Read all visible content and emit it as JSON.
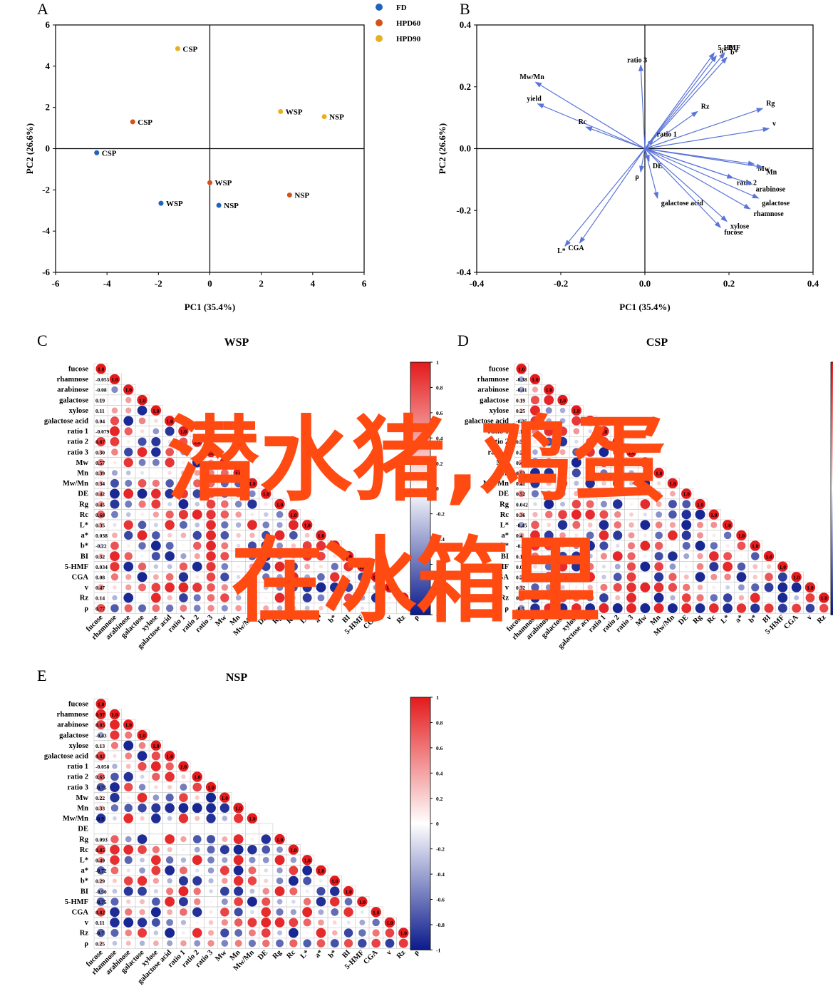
{
  "colors": {
    "FD": "#1f64b8",
    "HPD60": "#d4521a",
    "HPD90": "#e8b020",
    "vector": "#5a74d8",
    "pos": "#e41a1c",
    "neg": "#0a1a8c",
    "watermark": "#ff4a12"
  },
  "watermark": {
    "line1": "潜水猪,鸡蛋",
    "line2": "在冰箱里"
  },
  "panels": {
    "A": "A",
    "B": "B",
    "C": "C",
    "D": "D",
    "E": "E"
  },
  "chart_data": [
    {
      "type": "scatter",
      "panel": "A",
      "xlabel": "PC1 (35.4%)",
      "ylabel": "PC2 (26.6%)",
      "xlim": [
        -6,
        6
      ],
      "ylim": [
        -6,
        6
      ],
      "xticks": [
        -6,
        -4,
        -2,
        0,
        2,
        4,
        6
      ],
      "yticks": [
        -6,
        -4,
        -2,
        0,
        2,
        4,
        6
      ],
      "legend_position": "top-right outside",
      "series": [
        {
          "name": "FD",
          "color_key": "FD",
          "points": [
            {
              "x": -4.4,
              "y": -0.2,
              "label": "CSP"
            },
            {
              "x": -1.9,
              "y": -2.65,
              "label": "WSP"
            },
            {
              "x": 0.35,
              "y": -2.75,
              "label": "NSP"
            }
          ]
        },
        {
          "name": "HPD60",
          "color_key": "HPD60",
          "points": [
            {
              "x": -3.0,
              "y": 1.3,
              "label": "CSP"
            },
            {
              "x": 0.0,
              "y": -1.65,
              "label": "WSP"
            },
            {
              "x": 3.1,
              "y": -2.25,
              "label": "NSP"
            }
          ]
        },
        {
          "name": "HPD90",
          "color_key": "HPD90",
          "points": [
            {
              "x": -1.25,
              "y": 4.85,
              "label": "CSP"
            },
            {
              "x": 2.75,
              "y": 1.8,
              "label": "WSP"
            },
            {
              "x": 4.45,
              "y": 1.55,
              "label": "NSP"
            }
          ]
        }
      ]
    },
    {
      "type": "loading_plot",
      "panel": "B",
      "xlabel": "PC1 (35.4%)",
      "ylabel": "PC2 (26.6%)",
      "xlim": [
        -0.4,
        0.4
      ],
      "ylim": [
        -0.4,
        0.4
      ],
      "xticks": [
        "-0.4",
        "-0.2",
        "0.0",
        "0.2",
        "0.4"
      ],
      "yticks": [
        "-0.4",
        "-0.2",
        "0.0",
        "0.2",
        "0.4"
      ],
      "vectors": [
        {
          "label": "5-HMF",
          "x": 0.165,
          "y": 0.31
        },
        {
          "label": "BI",
          "x": 0.19,
          "y": 0.31
        },
        {
          "label": "a*",
          "x": 0.17,
          "y": 0.3
        },
        {
          "label": "b*",
          "x": 0.195,
          "y": 0.295
        },
        {
          "label": "ratio 3",
          "x": -0.01,
          "y": 0.27
        },
        {
          "label": "Mw/Mn",
          "x": -0.26,
          "y": 0.215
        },
        {
          "label": "yield",
          "x": -0.255,
          "y": 0.145
        },
        {
          "label": "Rc",
          "x": -0.14,
          "y": 0.07
        },
        {
          "label": "Rz",
          "x": 0.125,
          "y": 0.12
        },
        {
          "label": "Rg",
          "x": 0.28,
          "y": 0.13
        },
        {
          "label": "v",
          "x": 0.295,
          "y": 0.065
        },
        {
          "label": "ratio 1",
          "x": 0.02,
          "y": 0.03
        },
        {
          "label": "DE",
          "x": 0.01,
          "y": -0.04
        },
        {
          "label": "ρ",
          "x": -0.01,
          "y": -0.075
        },
        {
          "label": "galactose acid",
          "x": 0.03,
          "y": -0.16
        },
        {
          "label": "Mw",
          "x": 0.26,
          "y": -0.05
        },
        {
          "label": "Mn",
          "x": 0.28,
          "y": -0.06
        },
        {
          "label": "ratio 2",
          "x": 0.21,
          "y": -0.095
        },
        {
          "label": "arabinose",
          "x": 0.255,
          "y": -0.115
        },
        {
          "label": "galactose",
          "x": 0.27,
          "y": -0.16
        },
        {
          "label": "rhamnose",
          "x": 0.25,
          "y": -0.195
        },
        {
          "label": "xylose",
          "x": 0.195,
          "y": -0.235
        },
        {
          "label": "fucose",
          "x": 0.18,
          "y": -0.255
        },
        {
          "label": "L*",
          "x": -0.19,
          "y": -0.315
        },
        {
          "label": "CGA",
          "x": -0.155,
          "y": -0.305
        }
      ]
    },
    {
      "type": "heatmap",
      "panel": "C",
      "title": "WSP",
      "variables": [
        "fucose",
        "rhamnose",
        "arabinose",
        "galactose",
        "xylose",
        "galactose acid",
        "ratio 1",
        "ratio 2",
        "ratio 3",
        "Mw",
        "Mn",
        "Mw/Mn",
        "DE",
        "Rg",
        "Rc",
        "L*",
        "a*",
        "b*",
        "BI",
        "5-HMF",
        "CGA",
        "v",
        "Rz",
        "ρ"
      ],
      "colorbar_ticks": [
        "1",
        "0.8",
        "0.6",
        "0.4",
        "0.2",
        "0",
        "-0.2",
        "-0.4",
        "-0.6",
        "-0.8",
        "-1"
      ],
      "first_column_values": [
        "1.0",
        "-0.055",
        "-0.08",
        "0.19",
        "0.11",
        "0.04",
        "-0.079",
        "0.87",
        "0.30",
        "0.57",
        "0.39",
        "0.34",
        "0.42",
        "0.45",
        "0.68",
        "0.35",
        "0.038",
        "-0.22",
        "0.32",
        "0.034",
        "0.08",
        "0.47",
        "0.14",
        "0.77"
      ]
    },
    {
      "type": "heatmap",
      "panel": "D",
      "title": "CSP",
      "variables": [
        "fucose",
        "rhamnose",
        "arabinose",
        "galactose",
        "xylose",
        "galactose acid",
        "ratio 1",
        "ratio 2",
        "ratio 3",
        "Mw",
        "Mn",
        "Mw/Mn",
        "DE",
        "Rg",
        "Rc",
        "L*",
        "a*",
        "b*",
        "BI",
        "5-HMF",
        "CGA",
        "v",
        "Rz",
        "ρ"
      ],
      "colorbar_ticks": [
        "1",
        "0.8",
        "0.6",
        "0.4",
        "0.2",
        "0",
        "-0.2",
        "-0.4",
        "-0.6",
        "-0.8",
        "-1"
      ],
      "first_column_values": [
        "1.0",
        "-0.38",
        "-0.41",
        "0.19",
        "0.25",
        "-0.25",
        "0.18",
        "0.33",
        "0.21",
        "0.45",
        "0.53",
        "0.41",
        "0.52",
        "0.042",
        "0.36",
        "-0.45",
        "0.4",
        "-0.1",
        "0.15",
        "0.05",
        "0.29",
        "0.32",
        "0.56",
        "-0.5"
      ]
    },
    {
      "type": "heatmap",
      "panel": "E",
      "title": "NSP",
      "variables": [
        "fucose",
        "rhamnose",
        "arabinose",
        "galactose",
        "xylose",
        "galactose acid",
        "ratio 1",
        "ratio 2",
        "ratio 3",
        "Mw",
        "Mn",
        "Mw/Mn",
        "DE",
        "Rg",
        "Rc",
        "L*",
        "a*",
        "b*",
        "BI",
        "5-HMF",
        "CGA",
        "v",
        "Rz",
        "ρ"
      ],
      "colorbar_ticks": [
        "1",
        "0.8",
        "0.6",
        "0.4",
        "0.2",
        "0",
        "-0.2",
        "-0.4",
        "-0.6",
        "-0.8",
        "-1"
      ],
      "first_column_values": [
        "1.0",
        "0.97",
        "0.85",
        "-0.43",
        "0.13",
        "0.82",
        "-0.058",
        "0.65",
        "-0.75",
        "0.22",
        "0.33",
        "-0.9",
        "",
        "0.093",
        "0.85",
        "0.49",
        "-0.72",
        "0.29",
        "-0.50",
        "-0.75",
        "0.82",
        "0.11",
        "-0.7",
        "0.25"
      ]
    }
  ]
}
